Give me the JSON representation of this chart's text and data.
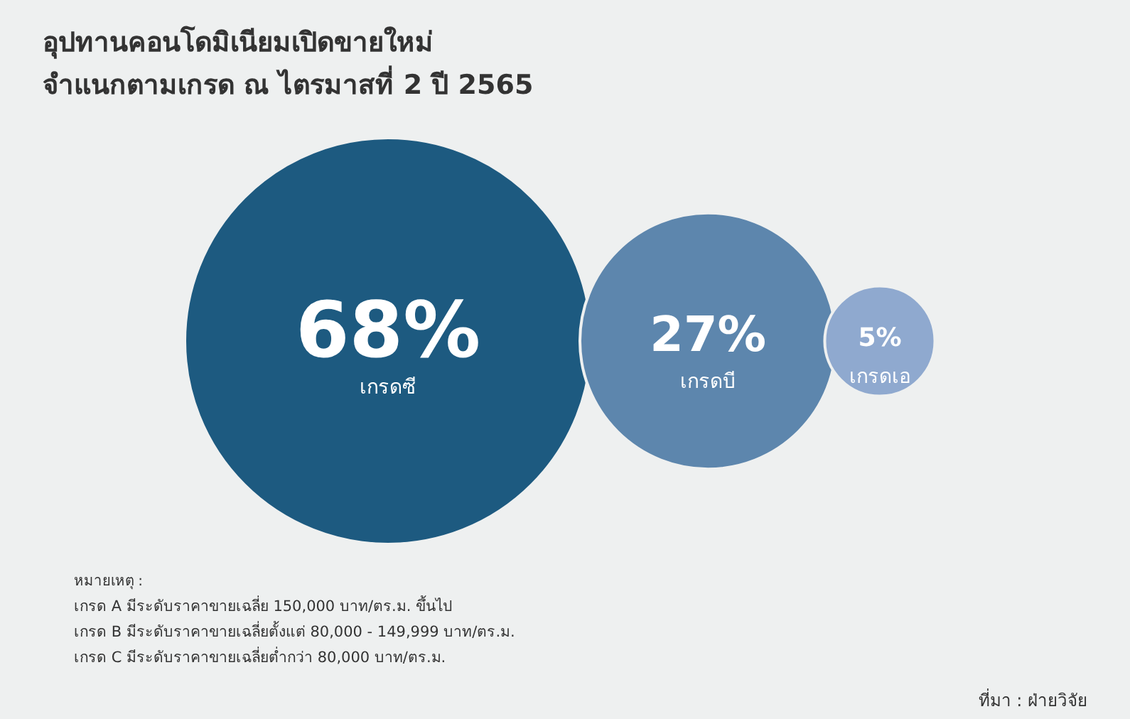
{
  "chart_data": {
    "type": "other",
    "title": "อุปทานคอนโดมิเนียมเปิดขายใหม่",
    "subtitle": "จำแนกตามเกรด ณ ไตรมาสที่ 2 ปี 2565",
    "categories": [
      "เกรดซี",
      "เกรดบี",
      "เกรดเอ"
    ],
    "values": [
      68,
      27,
      5
    ],
    "colors": [
      "#1d5a80",
      "#5d86ad",
      "#8fa9cf"
    ],
    "value_labels": [
      "68%",
      "27%",
      "5%"
    ],
    "annotations": [
      "หมายเหตุ :",
      "เกรด A มีระดับราคาขายเฉลี่ย 150,000 บาท/ตร.ม. ขึ้นไป",
      "เกรด B มีระดับราคาขายเฉลี่ยตั้งแต่ 80,000 - 149,999 บาท/ตร.ม.",
      "เกรด C มีระดับราคาขายเฉลี่ยต่ำกว่า 80,000 บาท/ตร.ม.",
      "ที่มา : ฝ่ายวิจัย"
    ]
  }
}
